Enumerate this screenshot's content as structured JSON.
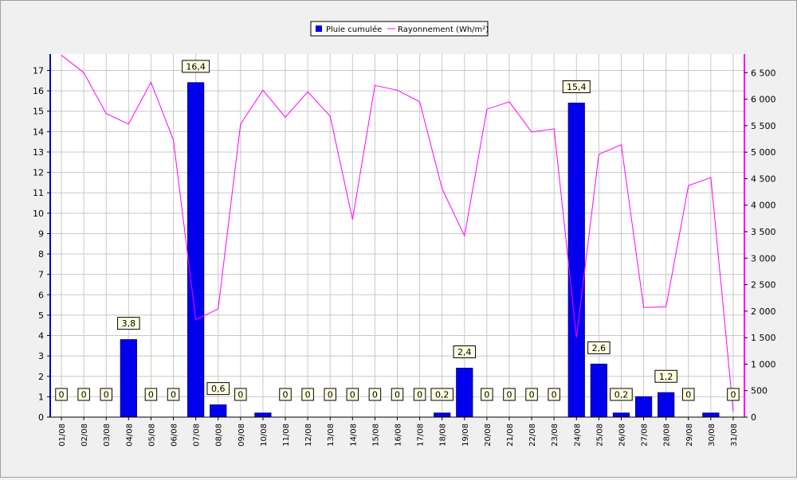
{
  "chart_data": {
    "type": "bar",
    "categories": [
      "01/08",
      "02/08",
      "03/08",
      "04/08",
      "05/08",
      "06/08",
      "07/08",
      "08/08",
      "09/08",
      "10/08",
      "11/08",
      "12/08",
      "13/08",
      "14/08",
      "15/08",
      "16/08",
      "17/08",
      "18/08",
      "19/08",
      "20/08",
      "21/08",
      "22/08",
      "23/08",
      "24/08",
      "25/08",
      "26/08",
      "27/08",
      "28/08",
      "29/08",
      "30/08",
      "31/08"
    ],
    "legend": {
      "placement": "top-center"
    },
    "grid": true,
    "series": [
      {
        "name": "Pluie cumulée",
        "type": "bar",
        "axis": "left",
        "color": "#0000ee",
        "values": [
          0,
          0,
          0,
          3.8,
          0,
          0,
          16.4,
          0.6,
          0,
          0.2,
          0,
          0,
          0,
          0,
          0,
          0,
          0,
          0.2,
          2.4,
          0,
          0,
          0,
          0,
          15.4,
          2.6,
          0.2,
          1.0,
          1.2,
          0,
          0.2,
          0
        ],
        "labels": [
          "0",
          "0",
          "0",
          "3,8",
          "0",
          "0",
          "16,4",
          "0,6",
          "0",
          "",
          "0",
          "0",
          "0",
          "0",
          "0",
          "0",
          "0",
          "0,2",
          "2,4",
          "0",
          "0",
          "0",
          "0",
          "15,4",
          "2,6",
          "0,2",
          "",
          "1,2",
          "0",
          "",
          "0"
        ]
      },
      {
        "name": "Rayonnement (Wh/m²)",
        "type": "line",
        "axis": "right",
        "color": "#ff00ff",
        "values": [
          6830,
          6500,
          5730,
          5530,
          6320,
          5230,
          1840,
          2040,
          5530,
          6170,
          5660,
          6140,
          5680,
          3730,
          6260,
          6170,
          5950,
          4310,
          3420,
          5810,
          5950,
          5380,
          5440,
          1500,
          4960,
          5140,
          2070,
          2080,
          4370,
          4520,
          100
        ]
      }
    ],
    "y_left": {
      "min": 0,
      "max": 17.8,
      "ticks": [
        "0",
        "1",
        "2",
        "3",
        "4",
        "5",
        "6",
        "7",
        "8",
        "9",
        "10",
        "11",
        "12",
        "13",
        "14",
        "15",
        "16",
        "17"
      ]
    },
    "y_right": {
      "min": 0,
      "max": 6850,
      "ticks": [
        "0",
        "500",
        "1 000",
        "1 500",
        "2 000",
        "2 500",
        "3 000",
        "3 500",
        "4 000",
        "4 500",
        "5 000",
        "5 500",
        "6 000",
        "6 500"
      ]
    }
  }
}
